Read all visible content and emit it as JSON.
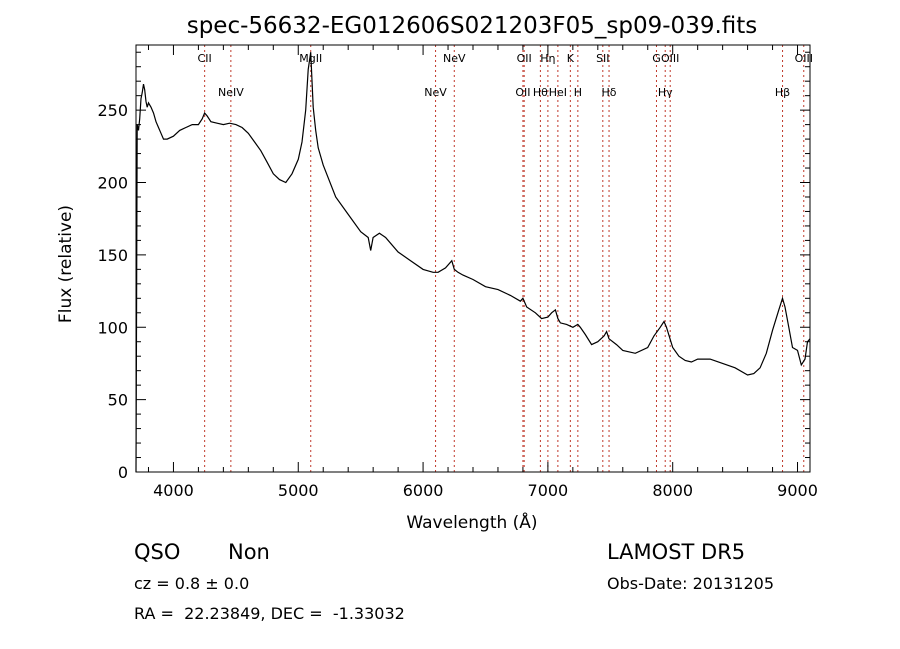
{
  "chart_data": {
    "type": "line",
    "title": "spec-56632-EG012606S021203F05_sp09-039.fits",
    "xlabel": "Wavelength (Å)",
    "ylabel": "Flux (relative)",
    "xlim": [
      3700,
      9100
    ],
    "ylim": [
      0,
      295
    ],
    "xticks": [
      4000,
      5000,
      6000,
      7000,
      8000,
      9000
    ],
    "yticks": [
      0,
      50,
      100,
      150,
      200,
      250
    ],
    "grid": false,
    "series": [
      {
        "x": [
          3700,
          3710,
          3720,
          3730,
          3740,
          3750,
          3760,
          3770,
          3780,
          3790,
          3800,
          3820,
          3840,
          3860,
          3880,
          3900,
          3920,
          3950,
          4000,
          4050,
          4100,
          4150,
          4200,
          4230,
          4250,
          4270,
          4300,
          4350,
          4400,
          4450,
          4500,
          4550,
          4600,
          4650,
          4700,
          4750,
          4800,
          4850,
          4900,
          4950,
          5000,
          5030,
          5060,
          5080,
          5100,
          5120,
          5140,
          5160,
          5200,
          5300,
          5400,
          5500,
          5560,
          5580,
          5600,
          5650,
          5700,
          5800,
          5900,
          6000,
          6080,
          6120,
          6180,
          6230,
          6250,
          6280,
          6320,
          6400,
          6500,
          6600,
          6700,
          6780,
          6800,
          6830,
          6900,
          6950,
          7000,
          7030,
          7060,
          7080,
          7100,
          7150,
          7200,
          7240,
          7260,
          7300,
          7350,
          7400,
          7450,
          7470,
          7490,
          7550,
          7600,
          7700,
          7800,
          7850,
          7900,
          7930,
          7950,
          8000,
          8050,
          8100,
          8150,
          8200,
          8300,
          8400,
          8500,
          8600,
          8650,
          8700,
          8750,
          8800,
          8850,
          8880,
          8900,
          8930,
          8960,
          9000,
          9030,
          9060,
          9080,
          9100
        ],
        "y": [
          0,
          240,
          236,
          244,
          258,
          262,
          268,
          264,
          256,
          252,
          255,
          252,
          248,
          242,
          238,
          234,
          230,
          230,
          232,
          236,
          238,
          240,
          240,
          244,
          248,
          246,
          242,
          241,
          240,
          241,
          240,
          238,
          234,
          228,
          222,
          214,
          206,
          202,
          200,
          206,
          216,
          228,
          250,
          278,
          290,
          252,
          236,
          224,
          212,
          190,
          178,
          166,
          162,
          153,
          162,
          165,
          162,
          152,
          146,
          140,
          138,
          138,
          141,
          146,
          140,
          138,
          136,
          133,
          128,
          126,
          122,
          118,
          120,
          114,
          110,
          106,
          107,
          110,
          112,
          106,
          103,
          102,
          100,
          102,
          100,
          95,
          88,
          90,
          94,
          97,
          92,
          88,
          84,
          82,
          86,
          94,
          100,
          104,
          100,
          86,
          80,
          77,
          76,
          78,
          78,
          75,
          72,
          67,
          68,
          72,
          82,
          98,
          112,
          120,
          114,
          100,
          86,
          84,
          74,
          78,
          90,
          92
        ]
      }
    ],
    "lines": [
      {
        "x": 4250,
        "label": "CII"
      },
      {
        "x": 4460,
        "label": "NeIV"
      },
      {
        "x": 5100,
        "label": "MgII"
      },
      {
        "x": 6100,
        "label": "NeV"
      },
      {
        "x": 6250,
        "label": "NeV"
      },
      {
        "x": 6800,
        "label": "OII"
      },
      {
        "x": 6810,
        "label": "OII"
      },
      {
        "x": 6940,
        "label": "Hθ"
      },
      {
        "x": 7000,
        "label": "Hη"
      },
      {
        "x": 7080,
        "label": "HeI"
      },
      {
        "x": 7180,
        "label": "K"
      },
      {
        "x": 7240,
        "label": "H"
      },
      {
        "x": 7440,
        "label": "SII"
      },
      {
        "x": 7490,
        "label": "Hδ"
      },
      {
        "x": 7870,
        "label": "G"
      },
      {
        "x": 7940,
        "label": "Hγ"
      },
      {
        "x": 7980,
        "label": "OIII"
      },
      {
        "x": 8880,
        "label": "Hβ"
      },
      {
        "x": 9050,
        "label": "OIII"
      }
    ]
  },
  "info": {
    "object_class": "QSO",
    "subclass": "Non",
    "cz": "cz = 0.8 ± 0.0",
    "coords": "RA =  22.23849, DEC =  -1.33032",
    "survey": "LAMOST DR5",
    "obs_date": "Obs-Date: 20131205"
  }
}
